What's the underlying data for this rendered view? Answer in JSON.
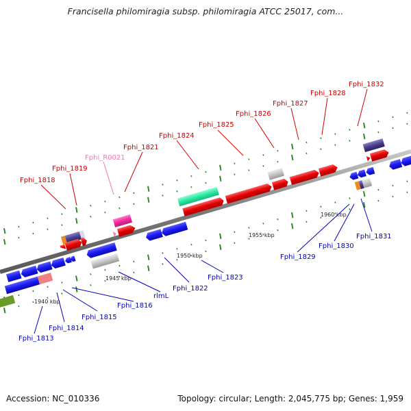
{
  "title": "Francisella philomiragia subsp. philomiragia ATCC 25017, com...",
  "footer": {
    "accession": "Accession: NC_010336",
    "summary": "Topology: circular; Length: 2,045,775 bp; Genes: 1,959"
  },
  "colors": {
    "forward_gene": "#e00000",
    "reverse_gene": "#1a1af0",
    "trna": "#f02a9c",
    "rrna_like": "#2ae8a0",
    "pseudo_grey": "#c0c0c0",
    "purple": "#4a3f8c",
    "orange": "#f08a1a",
    "salmon": "#f08080",
    "olive": "#6a9a2a",
    "backbone": "#8a8a8a",
    "tick": "#2a8a2a"
  },
  "scale_labels": [
    "1940 kbp",
    "1945 kbp",
    "1950 kbp",
    "1955 kbp",
    "1960 kbp"
  ],
  "top_labels": [
    {
      "text": "Fphi_1818",
      "kind": "gene"
    },
    {
      "text": "Fphi_1819",
      "kind": "gene"
    },
    {
      "text": "Fphi_R0021",
      "kind": "rna"
    },
    {
      "text": "Fphi_1821",
      "kind": "gene"
    },
    {
      "text": "Fphi_1824",
      "kind": "gene"
    },
    {
      "text": "Fphi_1825",
      "kind": "gene"
    },
    {
      "text": "Fphi_1826",
      "kind": "gene"
    },
    {
      "text": "Fphi_1827",
      "kind": "gene"
    },
    {
      "text": "Fphi_1828",
      "kind": "gene"
    },
    {
      "text": "Fphi_1832",
      "kind": "gene"
    }
  ],
  "bottom_labels": [
    {
      "text": "Fphi_1813"
    },
    {
      "text": "Fphi_1814"
    },
    {
      "text": "Fphi_1815"
    },
    {
      "text": "Fphi_1816"
    },
    {
      "text": "rlmL"
    },
    {
      "text": "Fphi_1822"
    },
    {
      "text": "Fphi_1823"
    },
    {
      "text": "Fphi_1829"
    },
    {
      "text": "Fphi_1830"
    },
    {
      "text": "Fphi_1831"
    }
  ]
}
